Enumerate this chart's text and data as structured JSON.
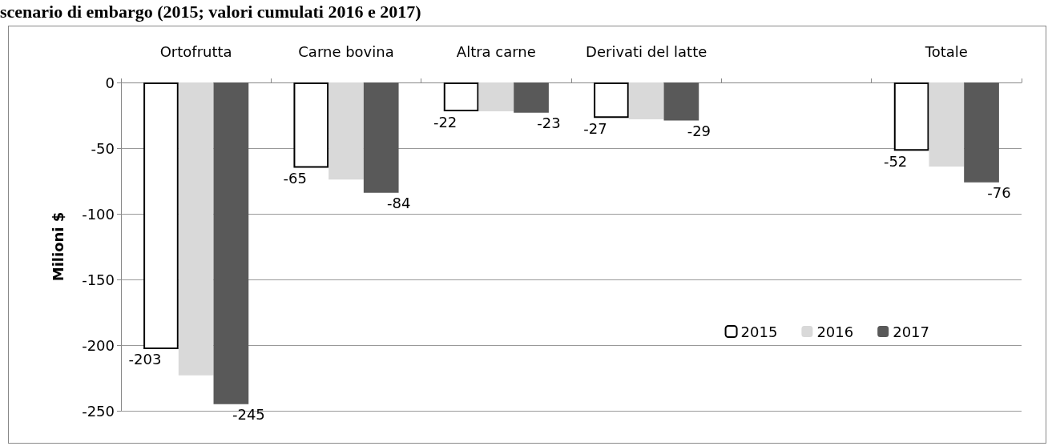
{
  "chart_data": {
    "type": "bar",
    "title": "scenario di embargo (2015; valori cumulati 2016 e 2017)",
    "ylabel": "Milioni $",
    "categories": [
      "Ortofrutta",
      "Carne bovina",
      "Altra carne",
      "Derivati del latte",
      null,
      "Totale"
    ],
    "series": [
      {
        "name": "2015",
        "color": "#ffffff",
        "values": [
          -203,
          -65,
          -22,
          -27,
          null,
          -52
        ],
        "value_labels": [
          "-203",
          "-65",
          "-22",
          "-27",
          null,
          "-52"
        ]
      },
      {
        "name": "2016",
        "color": "#d9d9d9",
        "values": [
          -223,
          -74,
          -22,
          -28,
          null,
          -64
        ],
        "value_labels": [
          null,
          null,
          null,
          null,
          null,
          null
        ]
      },
      {
        "name": "2017",
        "color": "#595959",
        "values": [
          -245,
          -84,
          -23,
          -29,
          null,
          -76
        ],
        "value_labels": [
          "-245",
          "-84",
          "-23",
          "-29",
          null,
          "-76"
        ]
      }
    ],
    "ylim": [
      -250,
      0
    ],
    "yticks": [
      0,
      -50,
      -100,
      -150,
      -200,
      -250
    ],
    "grid": "y",
    "legend": "bottom right"
  }
}
